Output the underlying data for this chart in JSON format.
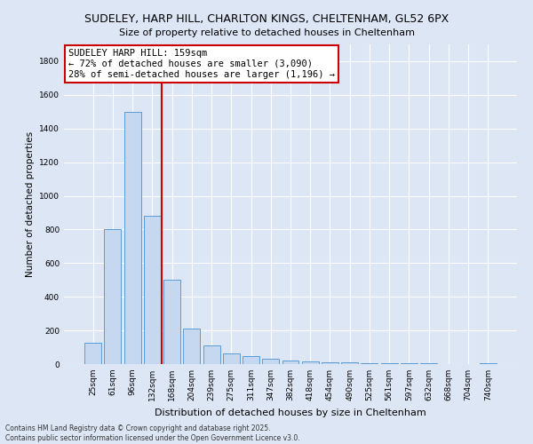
{
  "title": "SUDELEY, HARP HILL, CHARLTON KINGS, CHELTENHAM, GL52 6PX",
  "subtitle": "Size of property relative to detached houses in Cheltenham",
  "xlabel": "Distribution of detached houses by size in Cheltenham",
  "ylabel": "Number of detached properties",
  "footnote1": "Contains HM Land Registry data © Crown copyright and database right 2025.",
  "footnote2": "Contains public sector information licensed under the Open Government Licence v3.0.",
  "categories": [
    "25sqm",
    "61sqm",
    "96sqm",
    "132sqm",
    "168sqm",
    "204sqm",
    "239sqm",
    "275sqm",
    "311sqm",
    "347sqm",
    "382sqm",
    "418sqm",
    "454sqm",
    "490sqm",
    "525sqm",
    "561sqm",
    "597sqm",
    "632sqm",
    "668sqm",
    "704sqm",
    "740sqm"
  ],
  "values": [
    125,
    800,
    1500,
    880,
    500,
    210,
    110,
    65,
    45,
    30,
    20,
    15,
    10,
    8,
    6,
    5,
    4,
    3,
    2,
    2,
    5
  ],
  "bar_color": "#c5d8f0",
  "bar_edge_color": "#5b9bd5",
  "vline_pos": 3.5,
  "vline_color": "#cc0000",
  "annotation_line1": "SUDELEY HARP HILL: 159sqm",
  "annotation_line2": "← 72% of detached houses are smaller (3,090)",
  "annotation_line3": "28% of semi-detached houses are larger (1,196) →",
  "annotation_box_color": "#ffffff",
  "annotation_box_edge": "#cc0000",
  "ylim": [
    0,
    1900
  ],
  "yticks": [
    0,
    200,
    400,
    600,
    800,
    1000,
    1200,
    1400,
    1600,
    1800
  ],
  "bg_color": "#dce6f5",
  "grid_color": "#ffffff",
  "title_fontsize": 9,
  "footnote1_text": "Contains HM Land Registry data © Crown copyright and database right 2025.",
  "footnote2_text": "Contains public sector information licensed under the Open Government Licence v3.0."
}
